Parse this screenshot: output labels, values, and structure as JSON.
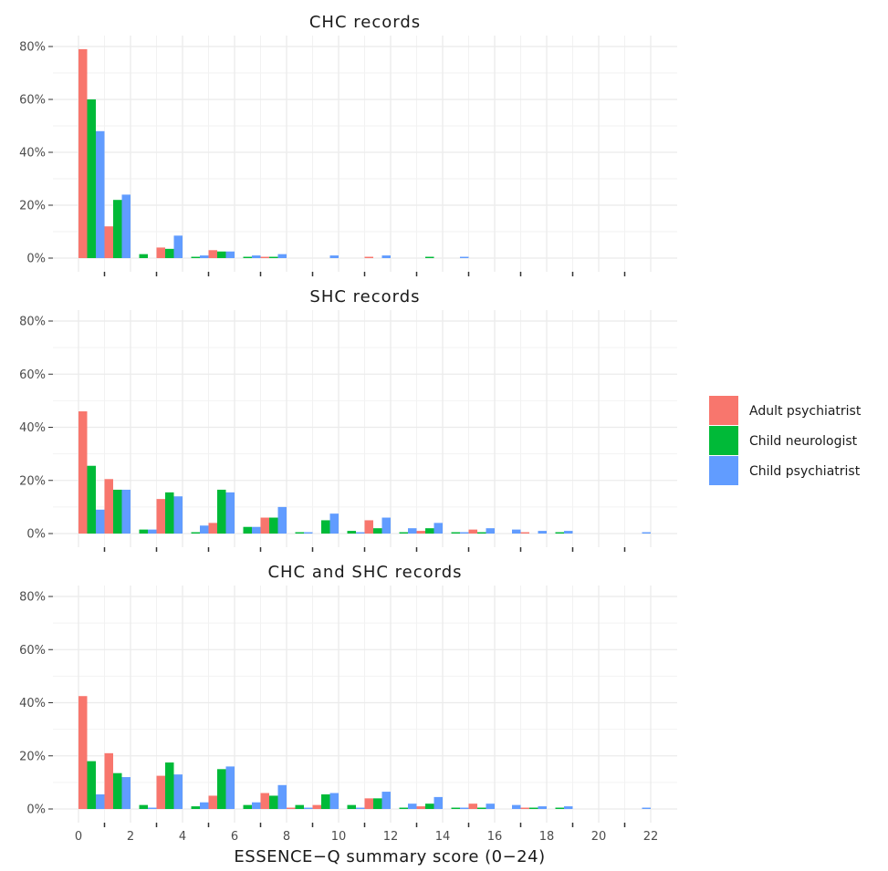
{
  "chart_data": {
    "type": "bar",
    "xlabel": "ESSENCE−Q summary score (0−24)",
    "x_ticks": [
      0,
      2,
      4,
      6,
      8,
      10,
      12,
      14,
      16,
      18,
      20,
      22
    ],
    "y_ticks": [
      "0%",
      "20%",
      "40%",
      "60%",
      "80%"
    ],
    "ylim": [
      0,
      0.8
    ],
    "xlim": [
      0,
      22
    ],
    "grid": true,
    "legend_position": "right",
    "legend": [
      {
        "name": "Adult psychiatrist",
        "color": "#F8766D"
      },
      {
        "name": "Child neurologist",
        "color": "#00BA38"
      },
      {
        "name": "Child psychiatrist",
        "color": "#619CFF"
      }
    ],
    "panels": [
      {
        "title": "CHC records",
        "x": [
          0,
          1,
          2,
          3,
          4,
          5,
          6,
          7,
          8,
          9,
          10,
          11,
          12,
          13,
          14,
          15,
          16,
          17,
          18,
          19,
          20,
          21
        ],
        "series": [
          {
            "name": "Adult psychiatrist",
            "values": [
              0.79,
              0.12,
              0.0,
              0.04,
              0.0,
              0.03,
              0.0,
              0.005,
              0.0,
              0.0,
              0.0,
              0.005,
              0.0,
              0.0,
              0.0,
              0.0,
              0.0,
              0.0,
              0.0,
              0.0,
              0.0,
              0.0
            ]
          },
          {
            "name": "Child neurologist",
            "values": [
              0.6,
              0.22,
              0.015,
              0.035,
              0.005,
              0.025,
              0.005,
              0.005,
              0.0,
              0.0,
              0.0,
              0.0,
              0.0,
              0.005,
              0.0,
              0.0,
              0.0,
              0.0,
              0.0,
              0.0,
              0.0,
              0.0
            ]
          },
          {
            "name": "Child psychiatrist",
            "values": [
              0.48,
              0.24,
              0.0,
              0.085,
              0.01,
              0.025,
              0.01,
              0.015,
              0.0,
              0.01,
              0.0,
              0.01,
              0.0,
              0.0,
              0.005,
              0.0,
              0.0,
              0.0,
              0.0,
              0.0,
              0.0,
              0.0
            ]
          }
        ]
      },
      {
        "title": "SHC records",
        "x": [
          0,
          1,
          2,
          3,
          4,
          5,
          6,
          7,
          8,
          9,
          10,
          11,
          12,
          13,
          14,
          15,
          16,
          17,
          18,
          19,
          20,
          21
        ],
        "series": [
          {
            "name": "Adult psychiatrist",
            "values": [
              0.46,
              0.205,
              0.0,
              0.13,
              0.0,
              0.04,
              0.0,
              0.06,
              0.0,
              0.0,
              0.0,
              0.05,
              0.0,
              0.01,
              0.0,
              0.015,
              0.0,
              0.005,
              0.0,
              0.0,
              0.0,
              0.0
            ]
          },
          {
            "name": "Child neurologist",
            "values": [
              0.255,
              0.165,
              0.015,
              0.155,
              0.005,
              0.165,
              0.025,
              0.06,
              0.005,
              0.05,
              0.01,
              0.02,
              0.005,
              0.02,
              0.005,
              0.005,
              0.0,
              0.0,
              0.005,
              0.0,
              0.0,
              0.0
            ]
          },
          {
            "name": "Child psychiatrist",
            "values": [
              0.09,
              0.165,
              0.015,
              0.14,
              0.03,
              0.155,
              0.025,
              0.1,
              0.005,
              0.075,
              0.005,
              0.06,
              0.02,
              0.04,
              0.005,
              0.02,
              0.015,
              0.01,
              0.01,
              0.0,
              0.0,
              0.005
            ]
          }
        ]
      },
      {
        "title": "CHC and SHC records",
        "x": [
          0,
          1,
          2,
          3,
          4,
          5,
          6,
          7,
          8,
          9,
          10,
          11,
          12,
          13,
          14,
          15,
          16,
          17,
          18,
          19,
          20,
          21
        ],
        "series": [
          {
            "name": "Adult psychiatrist",
            "values": [
              0.425,
              0.21,
              0.0,
              0.125,
              0.0,
              0.05,
              0.0,
              0.06,
              0.005,
              0.015,
              0.0,
              0.04,
              0.0,
              0.01,
              0.0,
              0.02,
              0.0,
              0.005,
              0.0,
              0.0,
              0.0,
              0.0
            ]
          },
          {
            "name": "Child neurologist",
            "values": [
              0.18,
              0.135,
              0.015,
              0.175,
              0.01,
              0.15,
              0.015,
              0.05,
              0.015,
              0.055,
              0.015,
              0.04,
              0.005,
              0.02,
              0.005,
              0.005,
              0.0,
              0.005,
              0.005,
              0.0,
              0.0,
              0.0
            ]
          },
          {
            "name": "Child psychiatrist",
            "values": [
              0.055,
              0.12,
              0.005,
              0.13,
              0.025,
              0.16,
              0.025,
              0.09,
              0.005,
              0.06,
              0.005,
              0.065,
              0.02,
              0.045,
              0.005,
              0.02,
              0.015,
              0.01,
              0.01,
              0.0,
              0.0,
              0.005
            ]
          }
        ]
      }
    ]
  }
}
